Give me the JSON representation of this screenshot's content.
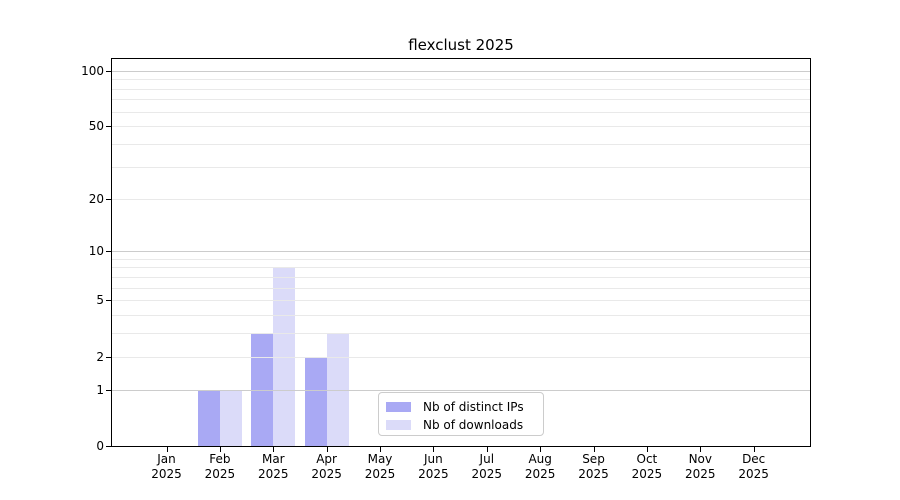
{
  "chart_data": {
    "type": "bar",
    "title": "flexclust 2025",
    "categories": [
      "Jan",
      "Feb",
      "Mar",
      "Apr",
      "May",
      "Jun",
      "Jul",
      "Aug",
      "Sep",
      "Oct",
      "Nov",
      "Dec"
    ],
    "x_tick_year": "2025",
    "series": [
      {
        "name": "Nb of distinct IPs",
        "color": "#a9a9f4",
        "values": [
          0,
          1,
          3,
          2,
          0,
          0,
          0,
          0,
          0,
          0,
          0,
          0
        ]
      },
      {
        "name": "Nb of downloads",
        "color": "#dbdbf9",
        "values": [
          0,
          1,
          8,
          3,
          0,
          0,
          0,
          0,
          0,
          0,
          0,
          0
        ]
      }
    ],
    "yscale": "log1p",
    "ylim": [
      0,
      115
    ],
    "ytick_labels": [
      0,
      1,
      2,
      5,
      10,
      20,
      50,
      100
    ],
    "major_gridline_values": [
      1,
      10,
      100
    ],
    "minor_gridline_values": [
      2,
      3,
      4,
      5,
      6,
      7,
      8,
      9,
      20,
      30,
      40,
      50,
      60,
      70,
      80,
      90
    ],
    "grid": true,
    "legend_position": "lower center",
    "colors": {
      "major_grid": "#cccccc",
      "minor_grid": "#e9e9e9",
      "axis": "#000000",
      "text": "#000000",
      "background": "#ffffff"
    }
  }
}
